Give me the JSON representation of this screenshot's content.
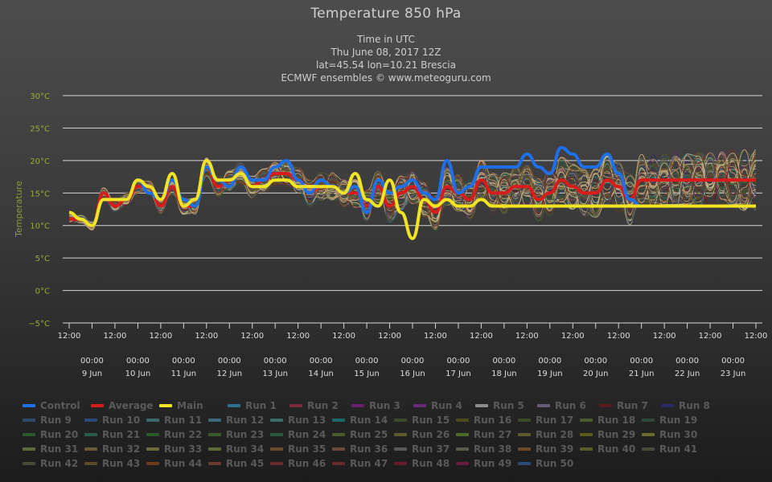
{
  "title": "Temperature 850 hPa",
  "subtitle": [
    "Time in UTC",
    "Thu June 08, 2017 12Z",
    "lat=45.54 lon=10.21 Brescia",
    "ECMWF ensembles © www.meteoguru.com"
  ],
  "chart_data": {
    "type": "line",
    "title": "Temperature 850 hPa",
    "ylabel": "Temperature",
    "xlabel": "",
    "ylim": [
      -5,
      30
    ],
    "y_ticks": [
      "30°C",
      "25°C",
      "20°C",
      "15°C",
      "10°C",
      "5°C",
      "0°C",
      "−5°C"
    ],
    "x_ticks_top": [
      "12:00",
      "12:00",
      "12:00",
      "12:00",
      "12:00",
      "12:00",
      "12:00",
      "12:00",
      "12:00",
      "12:00",
      "12:00",
      "12:00",
      "12:00",
      "12:00",
      "12:00",
      "12:00"
    ],
    "x_day_times": [
      "00:00",
      "00:00",
      "00:00",
      "00:00",
      "00:00",
      "00:00",
      "00:00",
      "00:00",
      "00:00",
      "00:00",
      "00:00",
      "00:00",
      "00:00",
      "00:00",
      "00:00"
    ],
    "x_days": [
      "9 Jun",
      "10 Jun",
      "11 Jun",
      "12 Jun",
      "13 Jun",
      "14 Jun",
      "15 Jun",
      "16 Jun",
      "17 Jun",
      "18 Jun",
      "19 Jun",
      "20 Jun",
      "21 Jun",
      "22 Jun",
      "23 Jun"
    ],
    "grid": true,
    "legend_position": "bottom",
    "series": [
      {
        "name": "Control",
        "color": "#1f6fe8",
        "hours": [
          0,
          6,
          12,
          18,
          24,
          30,
          36,
          42,
          48,
          54,
          60,
          66,
          72,
          78,
          84,
          90,
          96,
          102,
          108,
          114,
          120,
          126,
          132,
          138,
          144,
          150,
          156,
          162,
          168,
          174,
          180,
          186,
          192,
          198,
          204,
          210,
          216,
          222,
          228,
          234,
          240,
          246,
          252,
          258,
          264,
          270,
          276,
          282,
          288,
          294,
          300,
          306,
          312,
          318,
          324,
          330,
          336,
          342,
          348,
          354,
          360
        ],
        "values": [
          12,
          11,
          10,
          14,
          14,
          14,
          17,
          15,
          14,
          17,
          14,
          13,
          19,
          17,
          16,
          19,
          17,
          17,
          19,
          20,
          17,
          15,
          17,
          16,
          15,
          16,
          12,
          17,
          15,
          16,
          17,
          15,
          14,
          20,
          15,
          16,
          19,
          19,
          19,
          19,
          21,
          19,
          18,
          22,
          21,
          19,
          19,
          21,
          18,
          14,
          13,
          13,
          13,
          13,
          13,
          13,
          13,
          13,
          13,
          13,
          13
        ]
      },
      {
        "name": "Average",
        "color": "#d81b1b",
        "hours": [
          0,
          6,
          12,
          18,
          24,
          30,
          36,
          42,
          48,
          54,
          60,
          66,
          72,
          78,
          84,
          90,
          96,
          102,
          108,
          114,
          120,
          126,
          132,
          138,
          144,
          150,
          156,
          162,
          168,
          174,
          180,
          186,
          192,
          198,
          204,
          210,
          216,
          222,
          228,
          234,
          240,
          246,
          252,
          258,
          264,
          270,
          276,
          282,
          288,
          294,
          300,
          306,
          312,
          318,
          324,
          330,
          336,
          342,
          348,
          354,
          360
        ],
        "values": [
          11,
          11,
          10,
          15,
          13,
          14,
          16,
          16,
          13,
          16,
          13,
          13,
          19,
          16,
          17,
          18,
          16,
          17,
          18,
          18,
          17,
          15,
          16,
          16,
          15,
          15,
          13,
          16,
          13,
          15,
          16,
          14,
          12,
          16,
          15,
          14,
          17,
          15,
          15,
          16,
          16,
          14,
          15,
          17,
          16,
          15,
          15,
          17,
          16,
          14,
          17,
          17,
          17,
          17,
          17,
          17,
          17,
          17,
          17,
          17,
          17
        ]
      },
      {
        "name": "Main",
        "color": "#f2e422",
        "hours": [
          0,
          6,
          12,
          18,
          24,
          30,
          36,
          42,
          48,
          54,
          60,
          66,
          72,
          78,
          84,
          90,
          96,
          102,
          108,
          114,
          120,
          126,
          132,
          138,
          144,
          150,
          156,
          162,
          168,
          174,
          180,
          186,
          192,
          198,
          204,
          210,
          216,
          222,
          228,
          234,
          240,
          246,
          252,
          258,
          264,
          270,
          276,
          282,
          288,
          294,
          300,
          306,
          312,
          318,
          324,
          330,
          336,
          342,
          348,
          354,
          360
        ],
        "values": [
          12,
          11,
          10,
          14,
          14,
          14,
          17,
          16,
          14,
          18,
          13,
          14,
          20,
          17,
          17,
          18,
          16,
          16,
          17,
          17,
          16,
          16,
          16,
          16,
          15,
          18,
          14,
          13,
          17,
          12,
          8,
          14,
          13,
          14,
          13,
          13,
          14,
          13,
          13,
          13,
          13,
          13,
          13,
          13,
          13,
          13,
          13,
          13,
          13,
          13,
          13,
          13,
          13,
          13,
          13,
          13,
          13,
          13,
          13,
          13,
          13
        ]
      }
    ],
    "legend": [
      "Control",
      "Average",
      "Main",
      "Run 1",
      "Run 2",
      "Run 3",
      "Run 4",
      "Run 5",
      "Run 6",
      "Run 7",
      "Run 8",
      "Run 9",
      "Run 10",
      "Run 11",
      "Run 12",
      "Run 13",
      "Run 14",
      "Run 15",
      "Run 16",
      "Run 17",
      "Run 18",
      "Run 19",
      "Run 20",
      "Run 21",
      "Run 22",
      "Run 23",
      "Run 24",
      "Run 25",
      "Run 26",
      "Run 27",
      "Run 28",
      "Run 29",
      "Run 30",
      "Run 31",
      "Run 32",
      "Run 33",
      "Run 34",
      "Run 35",
      "Run 36",
      "Run 37",
      "Run 38",
      "Run 39",
      "Run 40",
      "Run 41",
      "Run 42",
      "Run 43",
      "Run 44",
      "Run 45",
      "Run 46",
      "Run 47",
      "Run 48",
      "Run 49",
      "Run 50"
    ],
    "legend_colors": [
      "#1f6fe8",
      "#d81b1b",
      "#f2e422",
      "#2d6f8f",
      "#7a2a3a",
      "#6a1f6a",
      "#6a2a7a",
      "#8a8a8a",
      "#6a5a7a",
      "#5a1a1a",
      "#2a2a6a",
      "#2a4a6a",
      "#2a4a7a",
      "#3a6a6a",
      "#3a6a7a",
      "#3a6a6a",
      "#1a6a6a",
      "#3a4a2a",
      "#4a4a1a",
      "#3a4a2a",
      "#4a5a2a",
      "#2a4a3a",
      "#2a5a2a",
      "#2a5a4a",
      "#2a5a2a",
      "#3a5a2a",
      "#2a5a3a",
      "#4a5a2a",
      "#5a5a2a",
      "#4a6a2a",
      "#5a5a2a",
      "#5a5a1a",
      "#6a6a2a",
      "#5a6a3a",
      "#6a5a3a",
      "#6a6a3a",
      "#5a6a3a",
      "#6a4a2a",
      "#6a4a3a",
      "#5a5a5a",
      "#5a5a4a",
      "#6a4a2a",
      "#5a5a2a",
      "#4a4a3a",
      "#4a4a3a",
      "#5a4a2a",
      "#6a3a1a",
      "#6a3a2a",
      "#6a2a2a",
      "#6a2a2a",
      "#6a1a2a",
      "#6a1a3a",
      "#2a4a7a"
    ]
  }
}
